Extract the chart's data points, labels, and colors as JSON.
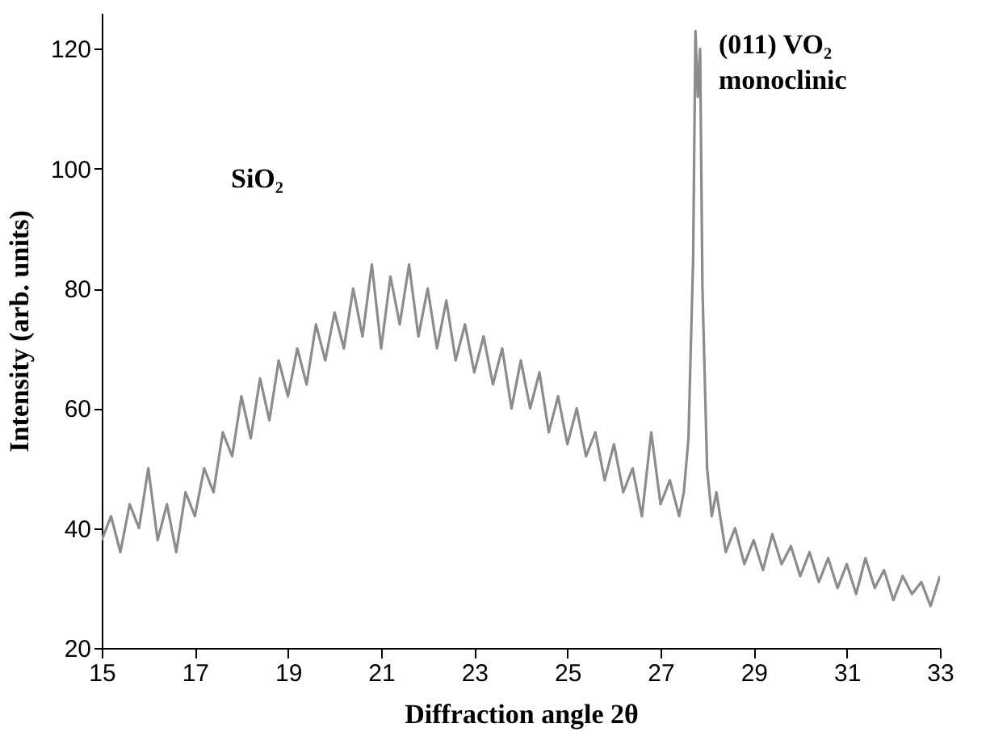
{
  "chart_data": {
    "type": "line",
    "xlabel": "Diffraction angle 2θ",
    "ylabel": "Intensity (arb. units)",
    "xlim": [
      15,
      33
    ],
    "xticks": [
      15,
      17,
      19,
      21,
      23,
      25,
      27,
      29,
      31,
      33
    ],
    "ylim": [
      20,
      126
    ],
    "yticks": [
      20,
      40,
      60,
      80,
      100,
      120
    ],
    "grid": false,
    "marker": "none",
    "line_style": "solid",
    "annotations": [
      "SiO₂",
      "(011) VO₂\nmonoclinic"
    ],
    "x": [
      15.0,
      15.2,
      15.4,
      15.6,
      15.8,
      16.0,
      16.2,
      16.4,
      16.6,
      16.8,
      17.0,
      17.2,
      17.4,
      17.6,
      17.8,
      18.0,
      18.2,
      18.4,
      18.6,
      18.8,
      19.0,
      19.2,
      19.4,
      19.6,
      19.8,
      20.0,
      20.2,
      20.4,
      20.6,
      20.8,
      21.0,
      21.2,
      21.4,
      21.6,
      21.8,
      22.0,
      22.2,
      22.4,
      22.6,
      22.8,
      23.0,
      23.2,
      23.4,
      23.6,
      23.8,
      24.0,
      24.2,
      24.4,
      24.6,
      24.8,
      25.0,
      25.2,
      25.4,
      25.6,
      25.8,
      26.0,
      26.2,
      26.4,
      26.6,
      26.8,
      27.0,
      27.2,
      27.4,
      27.5,
      27.6,
      27.7,
      27.75,
      27.8,
      27.85,
      27.9,
      28.0,
      28.1,
      28.2,
      28.4,
      28.6,
      28.8,
      29.0,
      29.2,
      29.4,
      29.6,
      29.8,
      30.0,
      30.2,
      30.4,
      30.6,
      30.8,
      31.0,
      31.2,
      31.4,
      31.6,
      31.8,
      32.0,
      32.2,
      32.4,
      32.6,
      32.8,
      33.0
    ],
    "series": [
      {
        "color": "#8c8c8c",
        "values": [
          38,
          42,
          36,
          44,
          40,
          50,
          38,
          44,
          36,
          46,
          42,
          50,
          46,
          56,
          52,
          62,
          55,
          65,
          58,
          68,
          62,
          70,
          64,
          74,
          68,
          76,
          70,
          80,
          72,
          84,
          70,
          82,
          74,
          84,
          72,
          80,
          70,
          78,
          68,
          74,
          66,
          72,
          64,
          70,
          60,
          68,
          60,
          66,
          56,
          62,
          54,
          60,
          52,
          56,
          48,
          54,
          46,
          50,
          42,
          56,
          44,
          48,
          42,
          46,
          55,
          85,
          123,
          112,
          120,
          80,
          50,
          42,
          46,
          36,
          40,
          34,
          38,
          33,
          39,
          34,
          37,
          32,
          36,
          31,
          35,
          30,
          34,
          29,
          35,
          30,
          33,
          28,
          32,
          29,
          31,
          27,
          32
        ]
      }
    ]
  }
}
